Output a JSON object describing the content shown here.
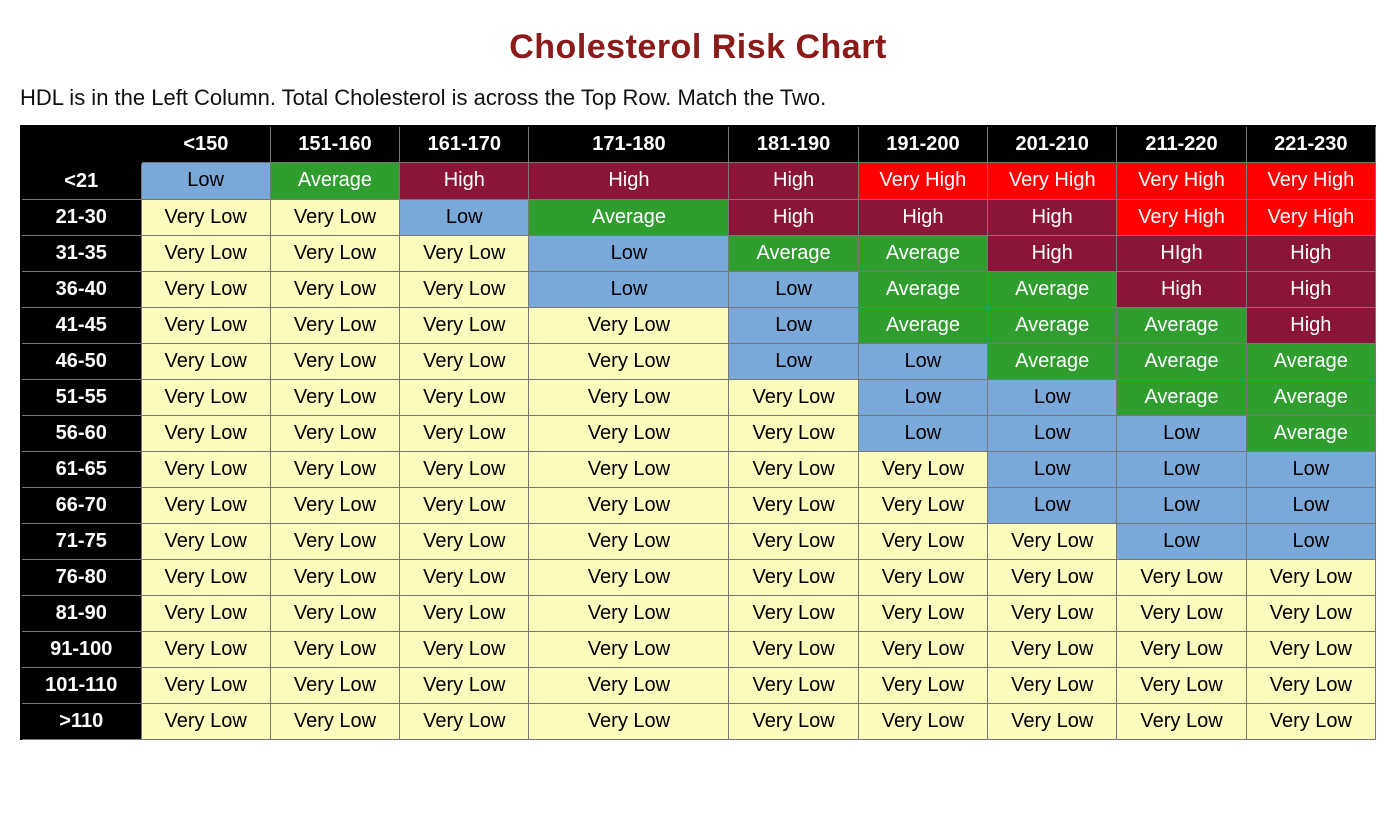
{
  "title": {
    "text": "Cholesterol Risk Chart",
    "color": "#8b1a1a",
    "fontsize": 34
  },
  "subtitle": "HDL is in the Left Column. Total Cholesterol is across the Top Row. Match the Two.",
  "table": {
    "type": "heatmap-table",
    "header_bg": "#000000",
    "header_fg": "#ffffff",
    "grid_color": "#777777",
    "cell_fontsize": 20,
    "header_fontsize": 24,
    "rowheader_fontsize": 22,
    "column_headers": [
      "<150",
      "151-160",
      "161-170",
      "171-180",
      "181-190",
      "191-200",
      "201-210",
      "211-220",
      "221-230"
    ],
    "row_headers": [
      "<21",
      "21-30",
      "31-35",
      "36-40",
      "41-45",
      "46-50",
      "51-55",
      "56-60",
      "61-65",
      "66-70",
      "71-75",
      "76-80",
      "81-90",
      "91-100",
      "101-110",
      ">110"
    ],
    "risk_levels": {
      "verylow": {
        "label": "Very Low",
        "bg": "#fbfbbd",
        "fg": "#000000"
      },
      "low": {
        "label": "Low",
        "bg": "#7aa8d8",
        "fg": "#000000"
      },
      "average": {
        "label": "Average",
        "bg": "#2f9e2f",
        "fg": "#ffffff"
      },
      "high": {
        "label": "High",
        "bg": "#8a1538",
        "fg": "#ffffff"
      },
      "high2": {
        "label": "HIgh",
        "bg": "#8a1538",
        "fg": "#ffffff"
      },
      "veryhigh": {
        "label": "Very High",
        "bg": "#ff0000",
        "fg": "#ffffff"
      }
    },
    "cells": [
      [
        "low",
        "average",
        "high",
        "high",
        "high",
        "veryhigh",
        "veryhigh",
        "veryhigh",
        "veryhigh"
      ],
      [
        "verylow",
        "verylow",
        "low",
        "average",
        "high",
        "high",
        "high",
        "veryhigh",
        "veryhigh"
      ],
      [
        "verylow",
        "verylow",
        "verylow",
        "low",
        "average",
        "average",
        "high",
        "high2",
        "high"
      ],
      [
        "verylow",
        "verylow",
        "verylow",
        "low",
        "low",
        "average",
        "average",
        "high",
        "high"
      ],
      [
        "verylow",
        "verylow",
        "verylow",
        "verylow",
        "low",
        "average",
        "average",
        "average",
        "high"
      ],
      [
        "verylow",
        "verylow",
        "verylow",
        "verylow",
        "low",
        "low",
        "average",
        "average",
        "average"
      ],
      [
        "verylow",
        "verylow",
        "verylow",
        "verylow",
        "verylow",
        "low",
        "low",
        "average",
        "average"
      ],
      [
        "verylow",
        "verylow",
        "verylow",
        "verylow",
        "verylow",
        "low",
        "low",
        "low",
        "average"
      ],
      [
        "verylow",
        "verylow",
        "verylow",
        "verylow",
        "verylow",
        "verylow",
        "low",
        "low",
        "low"
      ],
      [
        "verylow",
        "verylow",
        "verylow",
        "verylow",
        "verylow",
        "verylow",
        "low",
        "low",
        "low"
      ],
      [
        "verylow",
        "verylow",
        "verylow",
        "verylow",
        "verylow",
        "verylow",
        "verylow",
        "low",
        "low"
      ],
      [
        "verylow",
        "verylow",
        "verylow",
        "verylow",
        "verylow",
        "verylow",
        "verylow",
        "verylow",
        "verylow"
      ],
      [
        "verylow",
        "verylow",
        "verylow",
        "verylow",
        "verylow",
        "verylow",
        "verylow",
        "verylow",
        "verylow"
      ],
      [
        "verylow",
        "verylow",
        "verylow",
        "verylow",
        "verylow",
        "verylow",
        "verylow",
        "verylow",
        "verylow"
      ],
      [
        "verylow",
        "verylow",
        "verylow",
        "verylow",
        "verylow",
        "verylow",
        "verylow",
        "verylow",
        "verylow"
      ],
      [
        "verylow",
        "verylow",
        "verylow",
        "verylow",
        "verylow",
        "verylow",
        "verylow",
        "verylow",
        "verylow"
      ]
    ]
  }
}
